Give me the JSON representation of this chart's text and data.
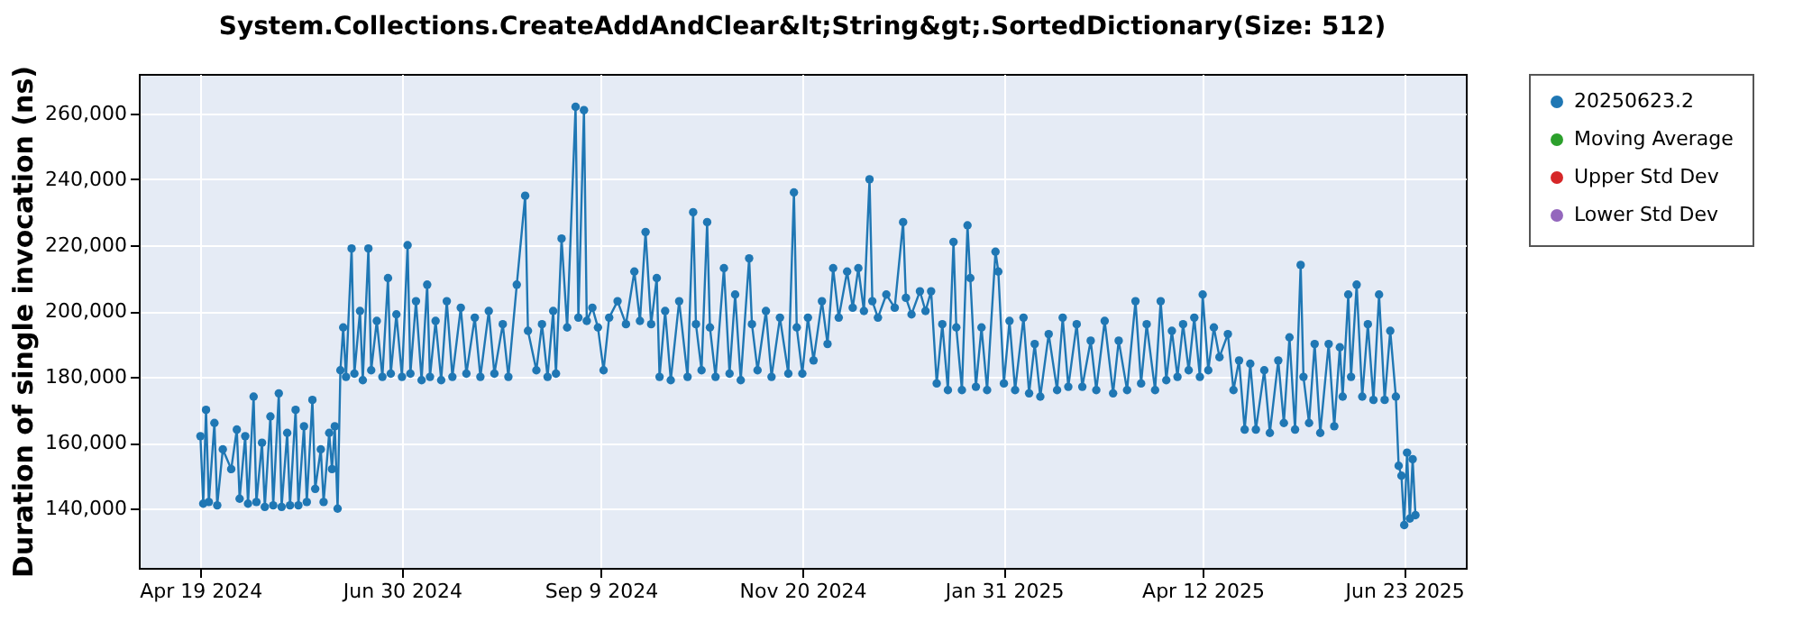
{
  "chart_data": {
    "type": "line",
    "title": "System.Collections.CreateAddAndClear&lt;String&gt;.SortedDictionary(Size: 512)",
    "ylabel": "Duration of single invocation (ns)",
    "xlim": [
      "2024-03-28",
      "2025-07-15"
    ],
    "ylim": [
      122000,
      272000
    ],
    "xticks": [
      {
        "value": "2024-04-19",
        "label": "Apr 19 2024"
      },
      {
        "value": "2024-06-30",
        "label": "Jun 30 2024"
      },
      {
        "value": "2024-09-09",
        "label": "Sep 9 2024"
      },
      {
        "value": "2024-11-20",
        "label": "Nov 20 2024"
      },
      {
        "value": "2025-01-31",
        "label": "Jan 31 2025"
      },
      {
        "value": "2025-04-12",
        "label": "Apr 12 2025"
      },
      {
        "value": "2025-06-23",
        "label": "Jun 23 2025"
      }
    ],
    "yticks": [
      {
        "value": 140000,
        "label": "140,000"
      },
      {
        "value": 160000,
        "label": "160,000"
      },
      {
        "value": 180000,
        "label": "180,000"
      },
      {
        "value": 200000,
        "label": "200,000"
      },
      {
        "value": 220000,
        "label": "220,000"
      },
      {
        "value": 240000,
        "label": "240,000"
      },
      {
        "value": 260000,
        "label": "260,000"
      }
    ],
    "grid": true,
    "legend": "right",
    "marker": "circle",
    "line_style": "solid",
    "x": [
      "2024-04-19",
      "2024-04-20",
      "2024-04-21",
      "2024-04-22",
      "2024-04-24",
      "2024-04-25",
      "2024-04-27",
      "2024-04-30",
      "2024-05-02",
      "2024-05-03",
      "2024-05-05",
      "2024-05-06",
      "2024-05-08",
      "2024-05-09",
      "2024-05-11",
      "2024-05-12",
      "2024-05-14",
      "2024-05-15",
      "2024-05-17",
      "2024-05-18",
      "2024-05-20",
      "2024-05-21",
      "2024-05-23",
      "2024-05-24",
      "2024-05-26",
      "2024-05-27",
      "2024-05-29",
      "2024-05-30",
      "2024-06-01",
      "2024-06-02",
      "2024-06-04",
      "2024-06-05",
      "2024-06-06",
      "2024-06-07",
      "2024-06-08",
      "2024-06-09",
      "2024-06-10",
      "2024-06-12",
      "2024-06-13",
      "2024-06-15",
      "2024-06-16",
      "2024-06-18",
      "2024-06-19",
      "2024-06-21",
      "2024-06-23",
      "2024-06-25",
      "2024-06-26",
      "2024-06-28",
      "2024-06-30",
      "2024-07-02",
      "2024-07-03",
      "2024-07-05",
      "2024-07-07",
      "2024-07-09",
      "2024-07-10",
      "2024-07-12",
      "2024-07-14",
      "2024-07-16",
      "2024-07-18",
      "2024-07-21",
      "2024-07-23",
      "2024-07-26",
      "2024-07-28",
      "2024-07-31",
      "2024-08-02",
      "2024-08-05",
      "2024-08-07",
      "2024-08-10",
      "2024-08-13",
      "2024-08-14",
      "2024-08-17",
      "2024-08-19",
      "2024-08-21",
      "2024-08-23",
      "2024-08-24",
      "2024-08-26",
      "2024-08-28",
      "2024-08-31",
      "2024-09-01",
      "2024-09-03",
      "2024-09-04",
      "2024-09-06",
      "2024-09-08",
      "2024-09-10",
      "2024-09-12",
      "2024-09-15",
      "2024-09-18",
      "2024-09-21",
      "2024-09-23",
      "2024-09-25",
      "2024-09-27",
      "2024-09-29",
      "2024-09-30",
      "2024-10-02",
      "2024-10-04",
      "2024-10-07",
      "2024-10-10",
      "2024-10-12",
      "2024-10-13",
      "2024-10-15",
      "2024-10-17",
      "2024-10-18",
      "2024-10-20",
      "2024-10-23",
      "2024-10-25",
      "2024-10-27",
      "2024-10-29",
      "2024-11-01",
      "2024-11-02",
      "2024-11-04",
      "2024-11-07",
      "2024-11-09",
      "2024-11-12",
      "2024-11-15",
      "2024-11-17",
      "2024-11-18",
      "2024-11-20",
      "2024-11-22",
      "2024-11-24",
      "2024-11-27",
      "2024-11-29",
      "2024-12-01",
      "2024-12-03",
      "2024-12-06",
      "2024-12-08",
      "2024-12-10",
      "2024-12-12",
      "2024-12-14",
      "2024-12-15",
      "2024-12-17",
      "2024-12-20",
      "2024-12-23",
      "2024-12-26",
      "2024-12-27",
      "2024-12-29",
      "2025-01-01",
      "2025-01-03",
      "2025-01-05",
      "2025-01-07",
      "2025-01-09",
      "2025-01-11",
      "2025-01-13",
      "2025-01-14",
      "2025-01-16",
      "2025-01-18",
      "2025-01-19",
      "2025-01-21",
      "2025-01-23",
      "2025-01-25",
      "2025-01-28",
      "2025-01-29",
      "2025-01-31",
      "2025-02-02",
      "2025-02-04",
      "2025-02-07",
      "2025-02-09",
      "2025-02-11",
      "2025-02-13",
      "2025-02-16",
      "2025-02-19",
      "2025-02-21",
      "2025-02-23",
      "2025-02-26",
      "2025-02-28",
      "2025-03-03",
      "2025-03-05",
      "2025-03-08",
      "2025-03-11",
      "2025-03-13",
      "2025-03-16",
      "2025-03-19",
      "2025-03-21",
      "2025-03-23",
      "2025-03-26",
      "2025-03-28",
      "2025-03-30",
      "2025-04-01",
      "2025-04-03",
      "2025-04-05",
      "2025-04-07",
      "2025-04-09",
      "2025-04-11",
      "2025-04-12",
      "2025-04-14",
      "2025-04-16",
      "2025-04-18",
      "2025-04-21",
      "2025-04-23",
      "2025-04-25",
      "2025-04-27",
      "2025-04-29",
      "2025-05-01",
      "2025-05-04",
      "2025-05-06",
      "2025-05-09",
      "2025-05-11",
      "2025-05-13",
      "2025-05-15",
      "2025-05-17",
      "2025-05-18",
      "2025-05-20",
      "2025-05-22",
      "2025-05-24",
      "2025-05-27",
      "2025-05-29",
      "2025-05-31",
      "2025-06-01",
      "2025-06-03",
      "2025-06-04",
      "2025-06-06",
      "2025-06-08",
      "2025-06-10",
      "2025-06-12",
      "2025-06-14",
      "2025-06-16",
      "2025-06-18",
      "2025-06-20",
      "2025-06-21",
      "2025-06-22",
      "2025-06-23",
      "2025-06-24",
      "2025-06-25",
      "2025-06-26",
      "2025-06-27"
    ],
    "series": [
      {
        "name": "20250623.2",
        "color": "#1f77b4",
        "values": [
          162000,
          141500,
          170000,
          142000,
          166000,
          141000,
          158000,
          152000,
          164000,
          143000,
          162000,
          141500,
          174000,
          142000,
          160000,
          140500,
          168000,
          141000,
          175000,
          140500,
          163000,
          141000,
          170000,
          141000,
          165000,
          142000,
          173000,
          146000,
          158000,
          142000,
          163000,
          152000,
          165000,
          140000,
          182000,
          195000,
          180000,
          219000,
          181000,
          200000,
          179000,
          219000,
          182000,
          197000,
          180000,
          210000,
          181000,
          199000,
          180000,
          220000,
          181000,
          203000,
          179000,
          208000,
          180000,
          197000,
          179000,
          203000,
          180000,
          201000,
          181000,
          198000,
          180000,
          200000,
          181000,
          196000,
          180000,
          208000,
          235000,
          194000,
          182000,
          196000,
          180000,
          200000,
          181000,
          222000,
          195000,
          262000,
          198000,
          261000,
          197000,
          201000,
          195000,
          182000,
          198000,
          203000,
          196000,
          212000,
          197000,
          224000,
          196000,
          210000,
          180000,
          200000,
          179000,
          203000,
          180000,
          230000,
          196000,
          182000,
          227000,
          195000,
          180000,
          213000,
          181000,
          205000,
          179000,
          216000,
          196000,
          182000,
          200000,
          180000,
          198000,
          181000,
          236000,
          195000,
          181000,
          198000,
          185000,
          203000,
          190000,
          213000,
          198000,
          212000,
          201000,
          213000,
          200000,
          240000,
          203000,
          198000,
          205000,
          201000,
          227000,
          204000,
          199000,
          206000,
          200000,
          206000,
          178000,
          196000,
          176000,
          221000,
          195000,
          176000,
          226000,
          210000,
          177000,
          195000,
          176000,
          218000,
          212000,
          178000,
          197000,
          176000,
          198000,
          175000,
          190000,
          174000,
          193000,
          176000,
          198000,
          177000,
          196000,
          177000,
          191000,
          176000,
          197000,
          175000,
          191000,
          176000,
          203000,
          178000,
          196000,
          176000,
          203000,
          179000,
          194000,
          180000,
          196000,
          182000,
          198000,
          180000,
          205000,
          182000,
          195000,
          186000,
          193000,
          176000,
          185000,
          164000,
          184000,
          164000,
          182000,
          163000,
          185000,
          166000,
          192000,
          164000,
          214000,
          180000,
          166000,
          190000,
          163000,
          190000,
          165000,
          189000,
          174000,
          205000,
          180000,
          208000,
          174000,
          196000,
          173000,
          205000,
          173000,
          194000,
          174000,
          153000,
          150000,
          135000,
          157000,
          137000,
          155000,
          138000
        ]
      },
      {
        "name": "Moving Average",
        "color": "#2ca02c",
        "values": [
          null,
          null,
          null,
          null,
          null,
          null,
          null,
          null,
          null,
          null,
          null,
          null,
          null,
          null,
          null,
          null,
          null,
          null,
          null,
          null,
          null,
          null,
          null,
          null,
          null,
          null,
          null,
          null,
          null,
          null,
          null,
          null,
          null,
          null,
          null,
          null,
          null,
          null,
          null,
          null,
          null,
          null,
          null,
          null,
          null,
          null,
          null,
          null,
          null,
          null,
          null,
          null,
          null,
          null,
          null,
          null,
          null,
          null,
          null,
          null,
          null,
          null,
          null,
          null,
          null,
          null,
          null,
          null,
          null,
          null,
          null,
          null,
          null,
          null,
          null,
          null,
          null,
          null,
          null,
          null,
          null,
          null,
          null,
          null,
          null,
          null,
          null,
          null,
          null,
          null,
          null,
          null,
          null,
          null,
          null,
          null,
          null,
          null,
          null,
          null,
          null,
          null,
          null,
          null,
          null,
          null,
          null,
          null,
          null,
          null,
          null,
          null,
          null,
          null,
          null,
          null,
          null,
          null,
          null,
          null,
          null,
          null,
          null,
          null,
          null,
          null,
          null,
          null,
          null,
          null,
          null,
          null,
          null,
          null,
          null,
          null,
          null,
          null,
          null,
          null,
          null,
          null,
          null,
          null,
          null,
          null,
          null,
          null,
          null,
          null,
          null,
          null,
          null,
          null,
          null,
          null,
          null,
          null,
          null,
          null,
          null,
          null,
          null,
          null,
          null,
          null,
          null,
          null,
          null,
          null,
          null,
          null,
          null,
          null,
          null,
          null,
          null,
          null,
          null,
          null,
          null,
          null,
          null,
          null,
          null,
          null,
          null,
          null,
          null,
          null,
          null,
          null,
          null,
          null,
          null,
          null,
          null,
          null,
          null,
          null,
          null,
          null,
          null,
          null,
          null,
          null,
          null,
          null,
          null,
          null,
          null,
          null,
          null,
          null,
          null,
          null,
          null,
          null,
          null,
          null,
          null,
          null,
          null,
          null
        ]
      },
      {
        "name": "Upper Std Dev",
        "color": "#d62728",
        "values": [
          null,
          null,
          null,
          null,
          null,
          null,
          null,
          null,
          null,
          null,
          null,
          null,
          null,
          null,
          null,
          null,
          null,
          null,
          null,
          null,
          null,
          null,
          null,
          null,
          null,
          null,
          null,
          null,
          null,
          null,
          null,
          null,
          null,
          null,
          null,
          null,
          null,
          null,
          null,
          null,
          null,
          null,
          null,
          null,
          null,
          null,
          null,
          null,
          null,
          null,
          null,
          null,
          null,
          null,
          null,
          null,
          null,
          null,
          null,
          null,
          null,
          null,
          null,
          null,
          null,
          null,
          null,
          null,
          null,
          null,
          null,
          null,
          null,
          null,
          null,
          null,
          null,
          null,
          null,
          null,
          null,
          null,
          null,
          null,
          null,
          null,
          null,
          null,
          null,
          null,
          null,
          null,
          null,
          null,
          null,
          null,
          null,
          null,
          null,
          null,
          null,
          null,
          null,
          null,
          null,
          null,
          null,
          null,
          null,
          null,
          null,
          null,
          null,
          null,
          null,
          null,
          null,
          null,
          null,
          null,
          null,
          null,
          null,
          null,
          null,
          null,
          null,
          null,
          null,
          null,
          null,
          null,
          null,
          null,
          null,
          null,
          null,
          null,
          null,
          null,
          null,
          null,
          null,
          null,
          null,
          null,
          null,
          null,
          null,
          null,
          null,
          null,
          null,
          null,
          null,
          null,
          null,
          null,
          null,
          null,
          null,
          null,
          null,
          null,
          null,
          null,
          null,
          null,
          null,
          null,
          null,
          null,
          null,
          null,
          null,
          null,
          null,
          null,
          null,
          null,
          null,
          null,
          null,
          null,
          null,
          null,
          null,
          null,
          null,
          null,
          null,
          null,
          null,
          null,
          null,
          null,
          null,
          null,
          null,
          null,
          null,
          null,
          null,
          null,
          null,
          null,
          null,
          null,
          null,
          null,
          null,
          null,
          null,
          null,
          null,
          null,
          null,
          null,
          null,
          null,
          null,
          null,
          null,
          null
        ]
      },
      {
        "name": "Lower Std Dev",
        "color": "#9467bd",
        "values": [
          null,
          null,
          null,
          null,
          null,
          null,
          null,
          null,
          null,
          null,
          null,
          null,
          null,
          null,
          null,
          null,
          null,
          null,
          null,
          null,
          null,
          null,
          null,
          null,
          null,
          null,
          null,
          null,
          null,
          null,
          null,
          null,
          null,
          null,
          null,
          null,
          null,
          null,
          null,
          null,
          null,
          null,
          null,
          null,
          null,
          null,
          null,
          null,
          null,
          null,
          null,
          null,
          null,
          null,
          null,
          null,
          null,
          null,
          null,
          null,
          null,
          null,
          null,
          null,
          null,
          null,
          null,
          null,
          null,
          null,
          null,
          null,
          null,
          null,
          null,
          null,
          null,
          null,
          null,
          null,
          null,
          null,
          null,
          null,
          null,
          null,
          null,
          null,
          null,
          null,
          null,
          null,
          null,
          null,
          null,
          null,
          null,
          null,
          null,
          null,
          null,
          null,
          null,
          null,
          null,
          null,
          null,
          null,
          null,
          null,
          null,
          null,
          null,
          null,
          null,
          null,
          null,
          null,
          null,
          null,
          null,
          null,
          null,
          null,
          null,
          null,
          null,
          null,
          null,
          null,
          null,
          null,
          null,
          null,
          null,
          null,
          null,
          null,
          null,
          null,
          null,
          null,
          null,
          null,
          null,
          null,
          null,
          null,
          null,
          null,
          null,
          null,
          null,
          null,
          null,
          null,
          null,
          null,
          null,
          null,
          null,
          null,
          null,
          null,
          null,
          null,
          null,
          null,
          null,
          null,
          null,
          null,
          null,
          null,
          null,
          null,
          null,
          null,
          null,
          null,
          null,
          null,
          null,
          null,
          null,
          null,
          null,
          null,
          null,
          null,
          null,
          null,
          null,
          null,
          null,
          null,
          null,
          null,
          null,
          null,
          null,
          null,
          null,
          null,
          null,
          null,
          null,
          null,
          null,
          null,
          null,
          null,
          null,
          null,
          null,
          null,
          null,
          null,
          null,
          null,
          null,
          null,
          null,
          null
        ]
      }
    ]
  }
}
